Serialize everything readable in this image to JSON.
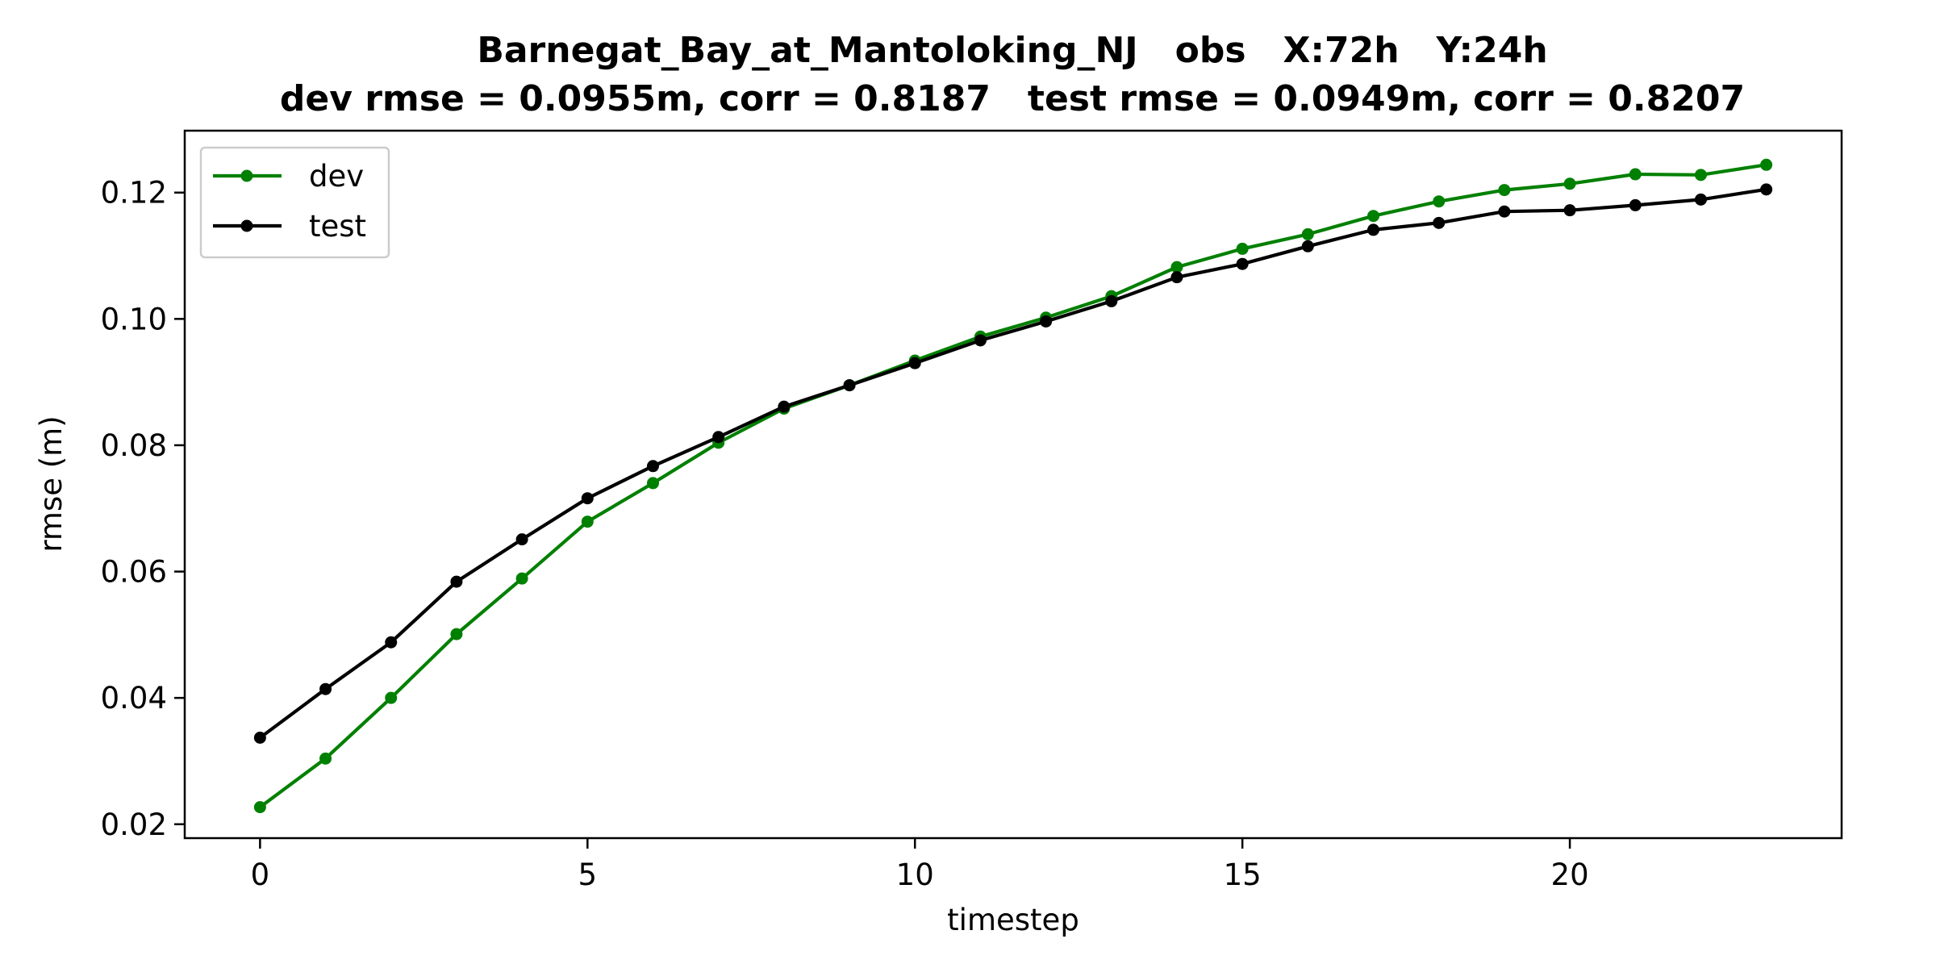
{
  "chart_data": {
    "type": "line",
    "title": "Barnegat_Bay_at_Mantoloking_NJ   obs   X:72h   Y:24h",
    "subtitle": "dev rmse = 0.0955m, corr = 0.8187   test rmse = 0.0949m, corr = 0.8207",
    "xlabel": "timestep",
    "ylabel": "rmse (m)",
    "xlim": [
      -1.15,
      24.15
    ],
    "ylim": [
      0.0178,
      0.1298
    ],
    "xticks": [
      0,
      5,
      10,
      15,
      20
    ],
    "xtick_labels": [
      "0",
      "5",
      "10",
      "15",
      "20"
    ],
    "yticks": [
      0.02,
      0.04,
      0.06,
      0.08,
      0.1,
      0.12
    ],
    "ytick_labels": [
      "0.02",
      "0.04",
      "0.06",
      "0.08",
      "0.10",
      "0.12"
    ],
    "grid": false,
    "legend_position": "top-left",
    "x": [
      0,
      1,
      2,
      3,
      4,
      5,
      6,
      7,
      8,
      9,
      10,
      11,
      12,
      13,
      14,
      15,
      16,
      17,
      18,
      19,
      20,
      21,
      22,
      23
    ],
    "series": [
      {
        "name": "dev",
        "color": "#008000",
        "values": [
          0.0227,
          0.0304,
          0.04,
          0.0501,
          0.0589,
          0.0679,
          0.074,
          0.0804,
          0.0858,
          0.0895,
          0.0934,
          0.0972,
          0.1002,
          0.1036,
          0.1082,
          0.1111,
          0.1134,
          0.1163,
          0.1186,
          0.1204,
          0.1214,
          0.1229,
          0.1228,
          0.1244
        ]
      },
      {
        "name": "test",
        "color": "#000000",
        "values": [
          0.0337,
          0.0414,
          0.0488,
          0.0584,
          0.0651,
          0.0716,
          0.0767,
          0.0813,
          0.0861,
          0.0895,
          0.093,
          0.0966,
          0.0996,
          0.1028,
          0.1066,
          0.1087,
          0.1115,
          0.1141,
          0.1152,
          0.117,
          0.1172,
          0.118,
          0.1189,
          0.1205
        ]
      }
    ]
  }
}
